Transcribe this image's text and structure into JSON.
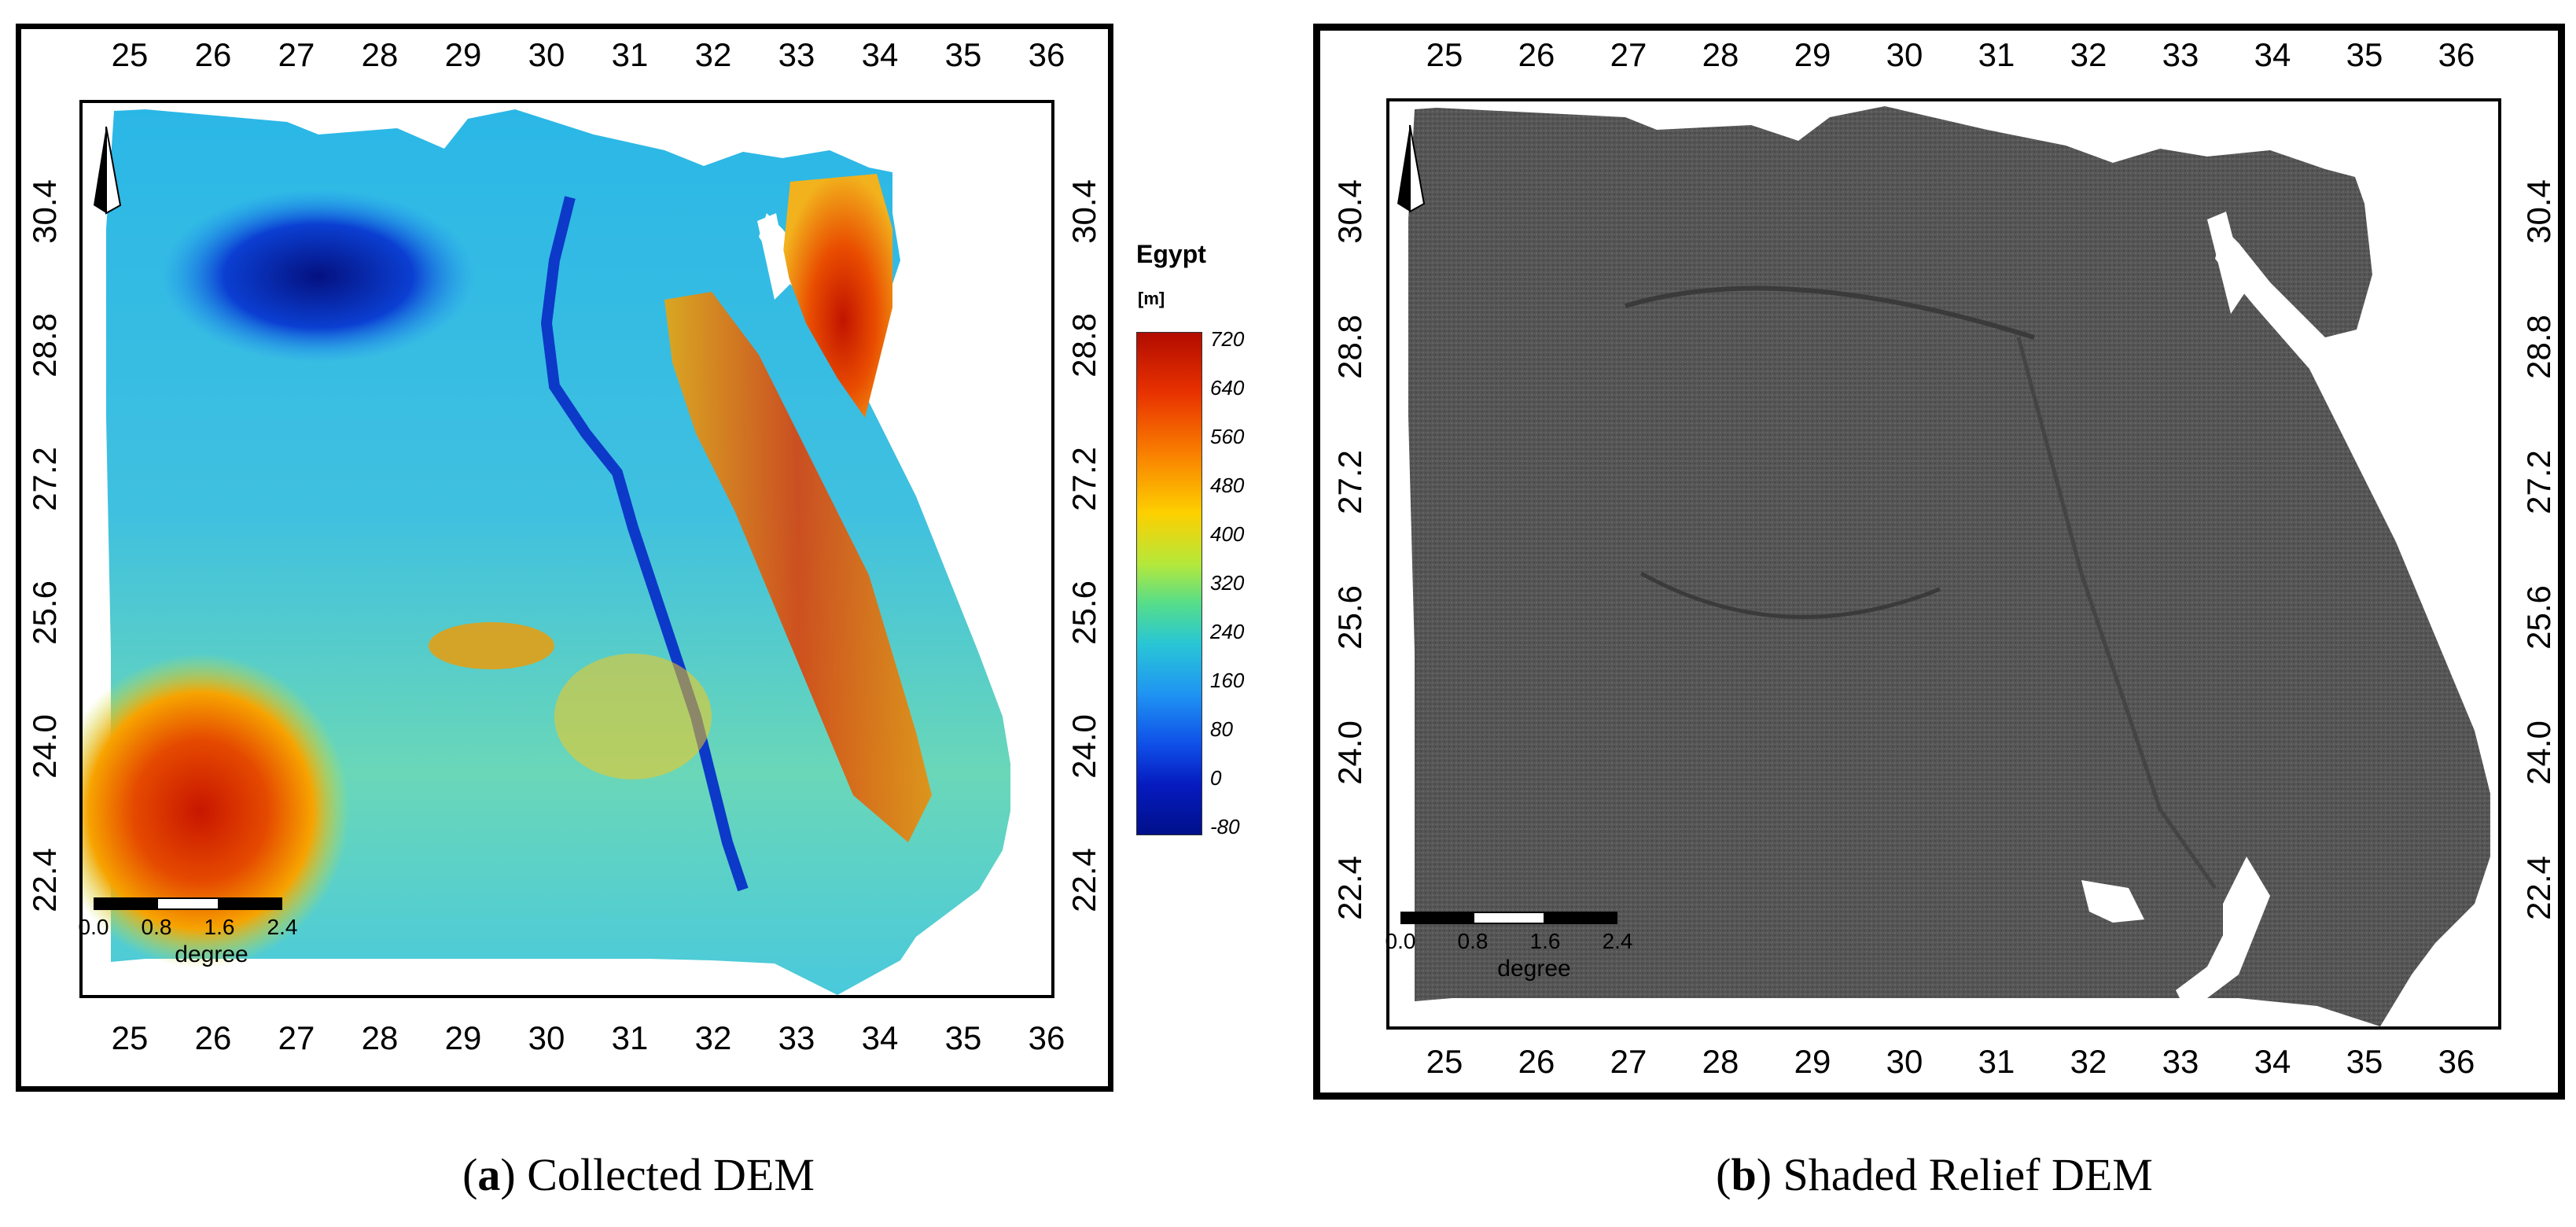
{
  "panel_a": {
    "x_ticks": [
      "25",
      "26",
      "27",
      "28",
      "29",
      "30",
      "31",
      "32",
      "33",
      "34",
      "35",
      "36"
    ],
    "y_ticks": [
      "30.4",
      "28.8",
      "27.2",
      "25.6",
      "24.0",
      "22.4"
    ],
    "legend": {
      "title": "Egypt",
      "unit": "[m]",
      "labels": [
        "720",
        "640",
        "560",
        "480",
        "400",
        "320",
        "240",
        "160",
        "80",
        "0",
        "-80"
      ],
      "colors": [
        "#b20c00",
        "#e83200",
        "#f97f00",
        "#fdd000",
        "#b6e83a",
        "#55dd8a",
        "#29c6d6",
        "#1f94f2",
        "#0f50e8",
        "#061bc0",
        "#00108a"
      ]
    },
    "scalebar": {
      "labels": [
        "0.0",
        "0.8",
        "1.6",
        "2.4"
      ],
      "unit": "degree"
    },
    "caption_letter": "a",
    "caption_text": "Collected DEM"
  },
  "panel_b": {
    "x_ticks": [
      "25",
      "26",
      "27",
      "28",
      "29",
      "30",
      "31",
      "32",
      "33",
      "34",
      "35",
      "36"
    ],
    "y_ticks": [
      "30.4",
      "28.8",
      "27.2",
      "25.6",
      "24.0",
      "22.4"
    ],
    "scalebar": {
      "labels": [
        "0.0",
        "0.8",
        "1.6",
        "2.4"
      ],
      "unit": "degree"
    },
    "caption_letter": "b",
    "caption_text": "Shaded Relief DEM"
  }
}
